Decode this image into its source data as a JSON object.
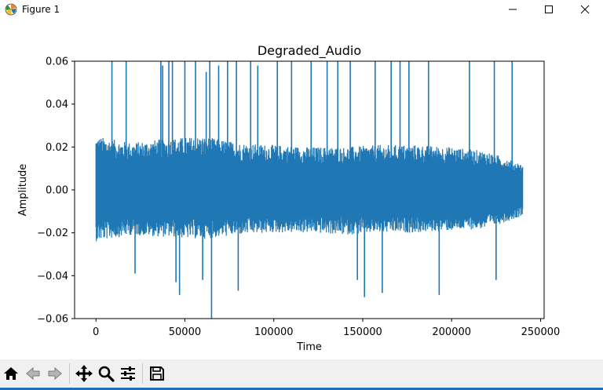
{
  "window": {
    "title": "Figure 1",
    "controls": {
      "minimize": "—",
      "maximize": "☐",
      "close": "✕"
    }
  },
  "toolbar": {
    "buttons": [
      {
        "name": "home-icon"
      },
      {
        "name": "back-arrow-icon"
      },
      {
        "name": "forward-arrow-icon"
      },
      {
        "name": "pan-icon"
      },
      {
        "name": "zoom-icon"
      },
      {
        "name": "configure-subplots-icon"
      },
      {
        "name": "save-icon"
      }
    ]
  },
  "chart_data": {
    "type": "line",
    "title": "Degraded_Audio",
    "xlabel": "Time",
    "ylabel": "Amplitude",
    "xlim": [
      -12000,
      252000
    ],
    "ylim": [
      -0.06,
      0.06
    ],
    "xticks": [
      0,
      50000,
      100000,
      150000,
      200000,
      250000
    ],
    "yticks": [
      -0.06,
      -0.04,
      -0.02,
      0.0,
      0.02,
      0.04,
      0.06
    ],
    "xtick_labels": [
      "0",
      "50000",
      "100000",
      "150000",
      "200000",
      "250000"
    ],
    "ytick_labels": [
      "−0.06",
      "−0.04",
      "−0.02",
      "0.00",
      "0.02",
      "0.04",
      "0.06"
    ],
    "n_samples": 240000,
    "line_color": "#1f77b4",
    "grid": false,
    "envelope": {
      "x": [
        0,
        20000,
        40000,
        60000,
        80000,
        100000,
        120000,
        140000,
        160000,
        180000,
        200000,
        220000,
        240000
      ],
      "upper": [
        0.025,
        0.022,
        0.024,
        0.025,
        0.022,
        0.021,
        0.02,
        0.02,
        0.021,
        0.021,
        0.02,
        0.018,
        0.012
      ],
      "lower": [
        -0.024,
        -0.021,
        -0.022,
        -0.023,
        -0.021,
        -0.02,
        -0.02,
        -0.021,
        -0.02,
        -0.02,
        -0.019,
        -0.018,
        -0.012
      ]
    },
    "spikes": [
      {
        "x": 9000,
        "y": 0.06
      },
      {
        "x": 17000,
        "y": 0.06
      },
      {
        "x": 22000,
        "y": -0.039
      },
      {
        "x": 36500,
        "y": 0.06
      },
      {
        "x": 37500,
        "y": 0.058
      },
      {
        "x": 41000,
        "y": 0.06
      },
      {
        "x": 43000,
        "y": 0.06
      },
      {
        "x": 45000,
        "y": -0.043
      },
      {
        "x": 47000,
        "y": -0.049
      },
      {
        "x": 50000,
        "y": 0.06
      },
      {
        "x": 56000,
        "y": 0.06
      },
      {
        "x": 60000,
        "y": -0.042
      },
      {
        "x": 62000,
        "y": 0.055
      },
      {
        "x": 64000,
        "y": 0.06
      },
      {
        "x": 65000,
        "y": -0.06
      },
      {
        "x": 69000,
        "y": 0.058
      },
      {
        "x": 74000,
        "y": 0.06
      },
      {
        "x": 79000,
        "y": 0.06
      },
      {
        "x": 80000,
        "y": -0.047
      },
      {
        "x": 87000,
        "y": 0.06
      },
      {
        "x": 91000,
        "y": 0.058
      },
      {
        "x": 102000,
        "y": 0.06
      },
      {
        "x": 110000,
        "y": 0.06
      },
      {
        "x": 121000,
        "y": 0.06
      },
      {
        "x": 130000,
        "y": 0.06
      },
      {
        "x": 136000,
        "y": 0.06
      },
      {
        "x": 143000,
        "y": 0.06
      },
      {
        "x": 147000,
        "y": -0.042
      },
      {
        "x": 151000,
        "y": -0.05
      },
      {
        "x": 157000,
        "y": 0.06
      },
      {
        "x": 161000,
        "y": -0.048
      },
      {
        "x": 166000,
        "y": 0.06
      },
      {
        "x": 171000,
        "y": 0.06
      },
      {
        "x": 176000,
        "y": 0.06
      },
      {
        "x": 187000,
        "y": 0.06
      },
      {
        "x": 193000,
        "y": -0.049
      },
      {
        "x": 210000,
        "y": 0.06
      },
      {
        "x": 224000,
        "y": 0.06
      },
      {
        "x": 225000,
        "y": -0.042
      },
      {
        "x": 234000,
        "y": 0.06
      }
    ]
  }
}
